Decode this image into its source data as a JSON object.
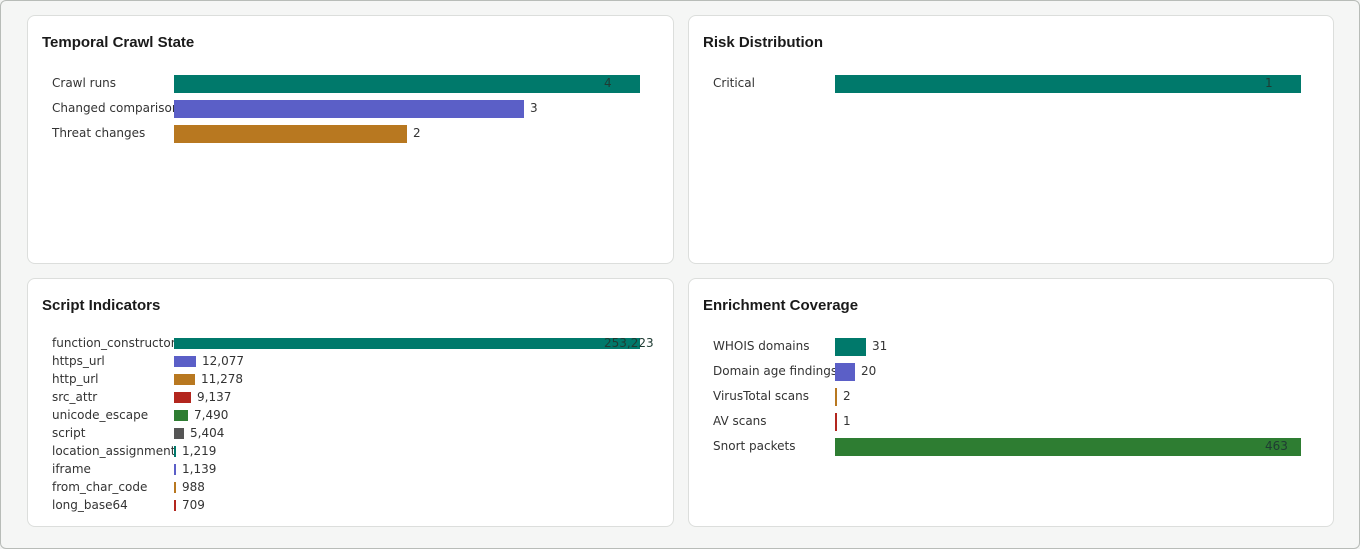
{
  "panels": [
    {
      "id": "p-temporal",
      "name": "temporal-crawl-state-panel",
      "title": "Temporal Crawl State",
      "layout": "large",
      "max": 4,
      "rows": [
        {
          "label": "Crawl runs",
          "value": 4,
          "display": "4",
          "color": "#00796b"
        },
        {
          "label": "Changed comparisons",
          "value": 3,
          "display": "3",
          "color": "#5b5fc7"
        },
        {
          "label": "Threat changes",
          "value": 2,
          "display": "2",
          "color": "#b87820"
        }
      ]
    },
    {
      "id": "p-risk",
      "name": "risk-distribution-panel",
      "title": "Risk Distribution",
      "layout": "large",
      "max": 1,
      "rows": [
        {
          "label": "Critical",
          "value": 1,
          "display": "1",
          "color": "#00796b"
        }
      ]
    },
    {
      "id": "p-script",
      "name": "script-indicators-panel",
      "title": "Script Indicators",
      "layout": "compact",
      "max": 253223,
      "rows": [
        {
          "label": "function_constructor",
          "value": 253223,
          "display": "253,223",
          "color": "#00796b"
        },
        {
          "label": "https_url",
          "value": 12077,
          "display": "12,077",
          "color": "#5b5fc7"
        },
        {
          "label": "http_url",
          "value": 11278,
          "display": "11,278",
          "color": "#b87820"
        },
        {
          "label": "src_attr",
          "value": 9137,
          "display": "9,137",
          "color": "#b3261e"
        },
        {
          "label": "unicode_escape",
          "value": 7490,
          "display": "7,490",
          "color": "#2e7d32"
        },
        {
          "label": "script",
          "value": 5404,
          "display": "5,404",
          "color": "#555555"
        },
        {
          "label": "location_assignment",
          "value": 1219,
          "display": "1,219",
          "color": "#00796b"
        },
        {
          "label": "iframe",
          "value": 1139,
          "display": "1,139",
          "color": "#5b5fc7"
        },
        {
          "label": "from_char_code",
          "value": 988,
          "display": "988",
          "color": "#b87820"
        },
        {
          "label": "long_base64",
          "value": 709,
          "display": "709",
          "color": "#b3261e"
        }
      ]
    },
    {
      "id": "p-enrich",
      "name": "enrichment-coverage-panel",
      "title": "Enrichment Coverage",
      "layout": "large",
      "max": 463,
      "rows": [
        {
          "label": "WHOIS domains",
          "value": 31,
          "display": "31",
          "color": "#00796b"
        },
        {
          "label": "Domain age findings",
          "value": 20,
          "display": "20",
          "color": "#5b5fc7"
        },
        {
          "label": "VirusTotal scans",
          "value": 2,
          "display": "2",
          "color": "#b87820"
        },
        {
          "label": "AV scans",
          "value": 1,
          "display": "1",
          "color": "#b3261e"
        },
        {
          "label": "Snort packets",
          "value": 463,
          "display": "463",
          "color": "#2e7d32"
        }
      ]
    }
  ]
}
